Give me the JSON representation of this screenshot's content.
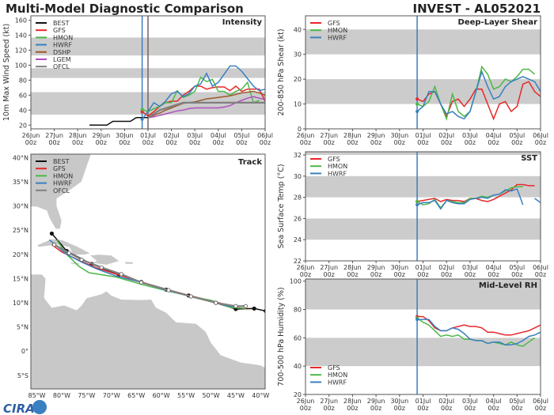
{
  "title": "Multi-Model Diagnostic Comparison",
  "storm_title": "INVEST - AL052021",
  "logo_text": "CIRA",
  "colors": {
    "BEST": "#111111",
    "GFS": "#e8272a",
    "HMON": "#4cb847",
    "HWRF": "#3a7fc1",
    "DSHP": "#9c5a2c",
    "LGEM": "#b04fc0",
    "OFCL": "#808080"
  },
  "time_ticks": [
    [
      "26Jun",
      "00z"
    ],
    [
      "27Jun",
      "00z"
    ],
    [
      "28Jun",
      "00z"
    ],
    [
      "29Jun",
      "00z"
    ],
    [
      "30Jun",
      "00z"
    ],
    [
      "01Jul",
      "00z"
    ],
    [
      "02Jul",
      "00z"
    ],
    [
      "03Jul",
      "00z"
    ],
    [
      "04Jul",
      "00z"
    ],
    [
      "05Jul",
      "00z"
    ],
    [
      "06Jul",
      "00z"
    ]
  ],
  "chart_data": [
    {
      "id": "intensity",
      "type": "line",
      "title": "Intensity",
      "ylabel": "10m Max Wind Speed (kt)",
      "xlim": [
        "2021-06-26T00",
        "2021-07-06T00"
      ],
      "ylim": [
        15,
        166
      ],
      "yticks": [
        20,
        40,
        60,
        80,
        100,
        120,
        140,
        160
      ],
      "bands": [
        [
          34,
          64
        ],
        [
          83,
          96
        ],
        [
          113,
          137
        ]
      ],
      "vlines": [
        {
          "time": "2021-06-30T18",
          "color": "#3a7fc1"
        },
        {
          "time": "2021-07-01T00",
          "color": "#7a6060"
        }
      ],
      "legend": [
        "BEST",
        "GFS",
        "HMON",
        "HWRF",
        "DSHP",
        "LGEM",
        "OFCL"
      ],
      "series": [
        {
          "name": "BEST",
          "start": "2021-06-28T12",
          "step_hours": 6,
          "values": [
            20,
            20,
            20,
            20,
            25,
            25,
            25,
            25,
            30,
            30,
            30
          ]
        },
        {
          "name": "GFS",
          "start": "2021-06-30T18",
          "step_hours": 6,
          "values": [
            38,
            32,
            38,
            45,
            50,
            52,
            52,
            60,
            65,
            72,
            72,
            68,
            70,
            71,
            71,
            66,
            72,
            65,
            68,
            68,
            68,
            52
          ]
        },
        {
          "name": "HMON",
          "start": "2021-06-30T18",
          "step_hours": 6,
          "values": [
            41,
            38,
            42,
            45,
            50,
            50,
            66,
            57,
            60,
            65,
            84,
            78,
            81,
            65,
            65,
            60,
            65,
            68,
            77,
            50,
            53
          ]
        },
        {
          "name": "HWRF",
          "start": "2021-06-30T18",
          "step_hours": 6,
          "values": [
            28,
            38,
            50,
            45,
            52,
            62,
            65,
            58,
            62,
            72,
            75,
            89,
            72,
            77,
            88,
            99,
            99,
            92,
            82,
            72,
            66,
            68
          ]
        },
        {
          "name": "DSHP",
          "start": "2021-07-01T00",
          "step_hours": 6,
          "values": [
            30,
            33,
            36,
            40,
            43,
            46,
            49,
            50,
            51,
            53,
            55,
            56,
            57,
            58,
            59,
            61,
            63,
            64,
            65,
            63,
            60
          ]
        },
        {
          "name": "LGEM",
          "start": "2021-07-01T00",
          "step_hours": 6,
          "values": [
            30,
            31,
            33,
            35,
            37,
            39,
            40,
            42,
            43,
            43,
            43,
            43,
            43,
            44,
            46,
            50,
            53,
            56,
            58,
            56,
            54
          ]
        },
        {
          "name": "OFCL",
          "start": "2021-07-01T00",
          "step_hours": 12,
          "values": [
            30,
            40,
            45,
            50,
            50,
            50,
            50,
            50,
            50,
            50,
            50
          ]
        }
      ]
    },
    {
      "id": "shear",
      "type": "line",
      "title": "Deep-Layer Shear",
      "ylabel": "200-850 hPa Shear (kt)",
      "xlim": [
        "2021-06-26T00",
        "2021-07-06T00"
      ],
      "ylim": [
        0,
        45.5
      ],
      "yticks": [
        0,
        10,
        20,
        30,
        40
      ],
      "bands": [
        [
          10,
          20
        ],
        [
          30,
          40
        ]
      ],
      "vlines": [
        {
          "time": "2021-06-30T18",
          "color": "#3a7fc1"
        }
      ],
      "legend": [
        "GFS",
        "HMON",
        "HWRF"
      ],
      "series": [
        {
          "name": "GFS",
          "start": "2021-06-30T18",
          "step_hours": 6,
          "values": [
            12,
            11,
            14,
            15,
            10,
            5,
            11,
            12,
            9,
            12,
            16,
            16,
            10,
            4,
            10,
            11,
            7,
            9,
            18,
            19,
            15,
            13
          ]
        },
        {
          "name": "HMON",
          "start": "2021-06-30T18",
          "step_hours": 6,
          "values": [
            10,
            9,
            11,
            17,
            10,
            4,
            14,
            7,
            5,
            7,
            15,
            25,
            22,
            16,
            17,
            20,
            19,
            21,
            24,
            24,
            22
          ]
        },
        {
          "name": "HWRF",
          "start": "2021-06-30T18",
          "step_hours": 6,
          "values": [
            7,
            9,
            15,
            15,
            10,
            6,
            7,
            5,
            4,
            7,
            15,
            23,
            17,
            12,
            13,
            17,
            19,
            20,
            21,
            20,
            19,
            15
          ]
        }
      ]
    },
    {
      "id": "sst",
      "type": "line",
      "title": "SST",
      "ylabel": "Sea Surface Temp (°C)",
      "xlim": [
        "2021-06-26T00",
        "2021-07-06T00"
      ],
      "ylim": [
        22,
        32.3
      ],
      "yticks": [
        22,
        24,
        26,
        28,
        30,
        32
      ],
      "bands": [
        [
          24,
          26
        ],
        [
          28,
          30
        ],
        [
          32,
          33
        ]
      ],
      "vlines": [
        {
          "time": "2021-06-30T18",
          "color": "#3a7fc1"
        }
      ],
      "legend": [
        "GFS",
        "HMON",
        "HWRF"
      ],
      "series": [
        {
          "name": "GFS",
          "start": "2021-06-30T18",
          "step_hours": 6,
          "values": [
            27.6,
            27.7,
            27.8,
            27.9,
            27.6,
            27.8,
            27.7,
            27.7,
            27.6,
            27.9,
            27.9,
            27.7,
            27.6,
            27.8,
            28.1,
            28.4,
            28.7,
            29.2,
            29.2,
            29.1,
            29.1
          ]
        },
        {
          "name": "HMON",
          "start": "2021-06-30T18",
          "step_hours": 6,
          "values": [
            27.6,
            27.3,
            27.4,
            27.8,
            27.0,
            27.7,
            27.6,
            27.5,
            27.5,
            27.9,
            27.9,
            28.1,
            28.0,
            28.2,
            28.3,
            28.6,
            28.9,
            29.0,
            29.0
          ]
        },
        {
          "name": "HWRF",
          "start": "2021-06-30T18",
          "step_hours": 6,
          "values": [
            27.3,
            27.5,
            27.5,
            27.7,
            26.9,
            27.7,
            27.5,
            27.4,
            27.4,
            27.8,
            27.9,
            28.0,
            27.9,
            28.2,
            28.3,
            28.7,
            28.6,
            28.8,
            27.3,
            null,
            27.9,
            27.5
          ]
        }
      ]
    },
    {
      "id": "rh",
      "type": "line",
      "title": "Mid-Level RH",
      "ylabel": "700-500 hPa Humidity (%)",
      "xlim": [
        "2021-06-26T00",
        "2021-07-06T00"
      ],
      "ylim": [
        20,
        101.5
      ],
      "yticks": [
        20,
        40,
        60,
        80,
        100
      ],
      "bands": [
        [
          40,
          60
        ],
        [
          80,
          101.5
        ]
      ],
      "vlines": [
        {
          "time": "2021-06-30T18",
          "color": "#3a7fc1"
        }
      ],
      "legend": [
        "GFS",
        "HMON",
        "HWRF"
      ],
      "series": [
        {
          "name": "GFS",
          "start": "2021-06-30T18",
          "step_hours": 6,
          "values": [
            75,
            75,
            72,
            67,
            65,
            65,
            67,
            68,
            69,
            68,
            68,
            67,
            64,
            64,
            63,
            62,
            62,
            63,
            64,
            65,
            67,
            69
          ]
        },
        {
          "name": "HMON",
          "start": "2021-06-30T18",
          "step_hours": 6,
          "values": [
            74,
            71,
            69,
            65,
            61,
            62,
            61,
            62,
            59,
            59,
            58,
            58,
            56,
            57,
            56,
            55,
            57,
            55,
            54,
            57,
            60
          ]
        },
        {
          "name": "HWRF",
          "start": "2021-06-30T18",
          "step_hours": 6,
          "values": [
            73,
            73,
            73,
            68,
            65,
            65,
            67,
            66,
            63,
            59,
            58,
            58,
            56,
            57,
            57,
            55,
            55,
            56,
            58,
            61,
            62,
            64
          ]
        }
      ]
    },
    {
      "id": "track",
      "type": "map-track",
      "title": "Track",
      "lon_range": [
        -86.2,
        -39.1
      ],
      "lat_range": [
        -7.8,
        40.7
      ],
      "lon_ticks": [
        -85,
        -80,
        -75,
        -70,
        -65,
        -60,
        -55,
        -50,
        -45,
        -40
      ],
      "lon_labels": [
        "85°W",
        "80°W",
        "75°W",
        "70°W",
        "65°W",
        "60°W",
        "55°W",
        "50°W",
        "45°W",
        "40°W"
      ],
      "lat_ticks": [
        40,
        35,
        30,
        25,
        20,
        15,
        10,
        5,
        0,
        -5
      ],
      "lat_labels": [
        "40°N",
        "35°N",
        "30°N",
        "25°N",
        "20°N",
        "15°N",
        "10°N",
        "5°N",
        "0°",
        "5°S"
      ],
      "legend": [
        "BEST",
        "GFS",
        "HMON",
        "HWRF",
        "OFCL"
      ],
      "series": [
        {
          "name": "BEST",
          "points": [
            [
              -39,
              8.3
            ],
            [
              -41.3,
              8.8
            ],
            [
              -45,
              8.7
            ],
            [
              -49,
              10
            ],
            [
              -54.5,
              11.5
            ],
            [
              -59,
              12.7
            ],
            [
              -64,
              14.3
            ],
            [
              -68.5,
              15.8
            ],
            [
              -74,
              18
            ],
            [
              -79,
              20.7
            ],
            [
              -82,
              24.3
            ]
          ]
        },
        {
          "name": "GFS",
          "points": [
            [
              -42.8,
              8.8
            ],
            [
              -45,
              9
            ],
            [
              -49,
              10.2
            ],
            [
              -54,
              11.4
            ],
            [
              -59,
              12.8
            ],
            [
              -64,
              14.3
            ],
            [
              -69,
              15.9
            ],
            [
              -73,
              17.2
            ],
            [
              -77,
              19
            ],
            [
              -80,
              20.5
            ],
            [
              -82,
              22
            ]
          ]
        },
        {
          "name": "HMON",
          "points": [
            [
              -43,
              8.8
            ],
            [
              -46,
              9
            ],
            [
              -50,
              10.5
            ],
            [
              -54,
              11.3
            ],
            [
              -59,
              12.5
            ],
            [
              -64,
              13.8
            ],
            [
              -69,
              15.3
            ],
            [
              -74.5,
              16.2
            ],
            [
              -76.5,
              17.5
            ],
            [
              -79,
              20
            ],
            [
              -81,
              23
            ]
          ]
        },
        {
          "name": "HWRF",
          "points": [
            [
              -43,
              9.4
            ],
            [
              -46,
              9.2
            ],
            [
              -50,
              10.3
            ],
            [
              -54,
              11.3
            ],
            [
              -59,
              12.6
            ],
            [
              -64,
              14.2
            ],
            [
              -69,
              15.5
            ],
            [
              -73,
              17
            ],
            [
              -76,
              18.4
            ],
            [
              -79,
              20
            ],
            [
              -82.5,
              23
            ]
          ]
        },
        {
          "name": "OFCL",
          "points": [
            [
              -43,
              9.3
            ],
            [
              -45,
              9.3
            ],
            [
              -49,
              10
            ],
            [
              -54,
              11.3
            ],
            [
              -58.5,
              12.6
            ],
            [
              -64,
              14.2
            ],
            [
              -68,
              15.9
            ],
            [
              -72,
              17.3
            ],
            [
              -76,
              18.9
            ],
            [
              -78.5,
              20.3
            ],
            [
              -81.5,
              22
            ]
          ]
        }
      ]
    }
  ]
}
